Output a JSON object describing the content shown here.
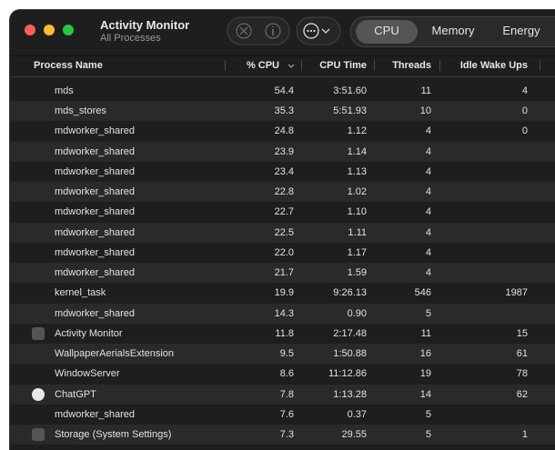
{
  "window": {
    "title": "Activity Monitor",
    "subtitle": "All Processes"
  },
  "tabs": [
    "CPU",
    "Memory",
    "Energy"
  ],
  "table": {
    "columns": [
      "Process Name",
      "% CPU",
      "CPU Time",
      "Threads",
      "Idle Wake Ups"
    ],
    "rows": [
      [
        "mds",
        "54.4",
        "3:51.60",
        "11",
        "4"
      ],
      [
        "mds_stores",
        "35.3",
        "5:51.93",
        "10",
        "0"
      ],
      [
        "mdworker_shared",
        "24.8",
        "1.12",
        "4",
        "0"
      ],
      [
        "mdworker_shared",
        "23.9",
        "1.14",
        "4",
        null
      ],
      [
        "mdworker_shared",
        "23.4",
        "1.13",
        "4",
        null
      ],
      [
        "mdworker_shared",
        "22.8",
        "1.02",
        "4",
        null
      ],
      [
        "mdworker_shared",
        "22.7",
        "1.10",
        "4",
        null
      ],
      [
        "mdworker_shared",
        "22.5",
        "1.11",
        "4",
        null
      ],
      [
        "mdworker_shared",
        "22.0",
        "1.17",
        "4",
        null
      ],
      [
        "mdworker_shared",
        "21.7",
        "1.59",
        "4",
        null
      ],
      [
        "kernel_task",
        "19.9",
        "9:26.13",
        "546",
        "1987"
      ],
      [
        "mdworker_shared",
        "14.3",
        "0.90",
        "5",
        null
      ],
      [
        "Activity Monitor",
        "11.8",
        "2:17.48",
        "11",
        "15"
      ],
      [
        "WallpaperAerialsExtension",
        "9.5",
        "1:50.88",
        "16",
        "61"
      ],
      [
        "WindowServer",
        "8.6",
        "11:12.86",
        "19",
        "78"
      ],
      [
        "ChatGPT",
        "7.8",
        "1:13.28",
        "14",
        "62"
      ],
      [
        "mdworker_shared",
        "7.6",
        "0.37",
        "5",
        null
      ],
      [
        "Storage (System Settings)",
        "7.3",
        "29.55",
        "5",
        "1"
      ]
    ]
  }
}
